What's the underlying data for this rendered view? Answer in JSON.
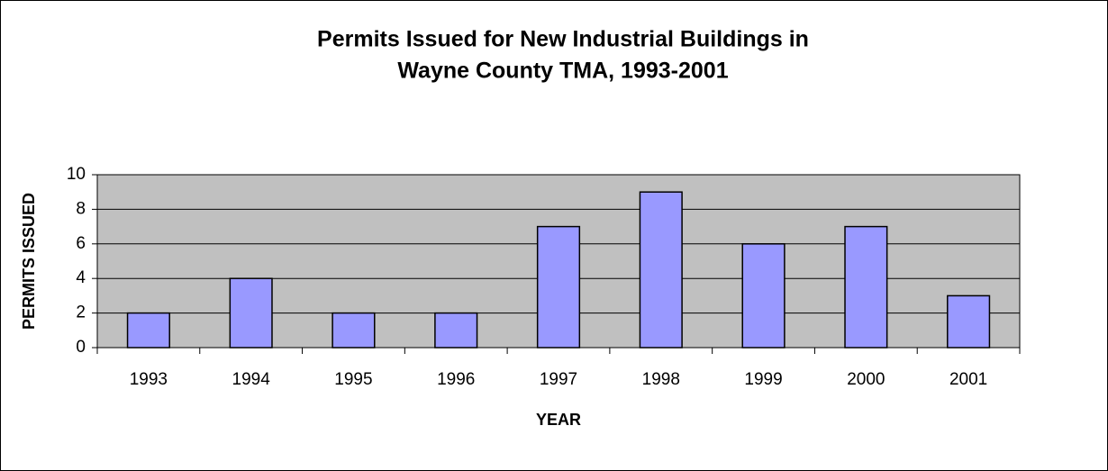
{
  "chart_data": {
    "type": "bar",
    "title": [
      "Permits Issued for New Industrial Buildings in",
      "Wayne County TMA, 1993-2001"
    ],
    "x_label": "YEAR",
    "y_label": "PERMITS ISSUED",
    "categories": [
      "1993",
      "1994",
      "1995",
      "1996",
      "1997",
      "1998",
      "1999",
      "2000",
      "2001"
    ],
    "values": [
      2,
      4,
      2,
      2,
      7,
      9,
      6,
      7,
      3
    ],
    "color": "#9999ff",
    "plot_background": "#c0c0c0",
    "ylim": [
      0,
      10
    ],
    "yticks": [
      0,
      2,
      4,
      6,
      8,
      10
    ],
    "grid": true
  }
}
